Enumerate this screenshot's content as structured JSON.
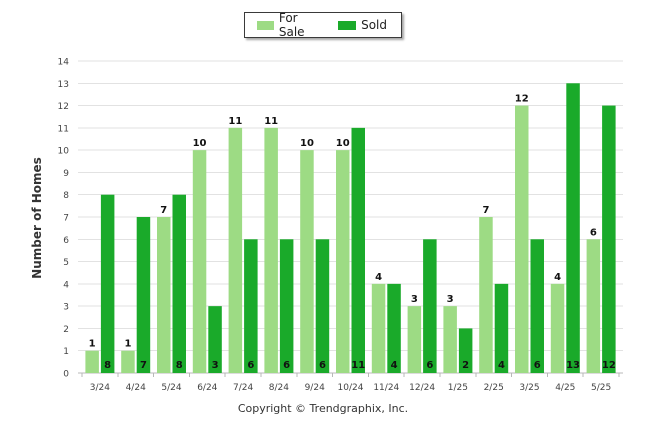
{
  "colors": {
    "for_sale": "#9ddb84",
    "sold": "#1aaa2a"
  },
  "legend": {
    "for_sale_label": "For Sale",
    "sold_label": "Sold"
  },
  "copyright": "Copyright © Trendgraphix, Inc.",
  "chart_data": {
    "type": "bar",
    "title": "",
    "xlabel": "",
    "ylabel": "Number of Homes",
    "ylim": [
      0,
      14
    ],
    "yticks": [
      0,
      1,
      2,
      3,
      4,
      5,
      6,
      7,
      8,
      9,
      10,
      11,
      12,
      13,
      14
    ],
    "grid": true,
    "legend_position": "top-center",
    "categories": [
      "3/24",
      "4/24",
      "5/24",
      "6/24",
      "7/24",
      "8/24",
      "9/24",
      "10/24",
      "11/24",
      "12/24",
      "1/25",
      "2/25",
      "3/25",
      "4/25",
      "5/25"
    ],
    "series": [
      {
        "name": "For Sale",
        "values": [
          1,
          1,
          7,
          10,
          11,
          11,
          10,
          10,
          4,
          3,
          3,
          7,
          12,
          4,
          6
        ]
      },
      {
        "name": "Sold",
        "values": [
          8,
          7,
          8,
          3,
          6,
          6,
          6,
          11,
          4,
          6,
          2,
          4,
          6,
          13,
          12
        ]
      }
    ]
  }
}
